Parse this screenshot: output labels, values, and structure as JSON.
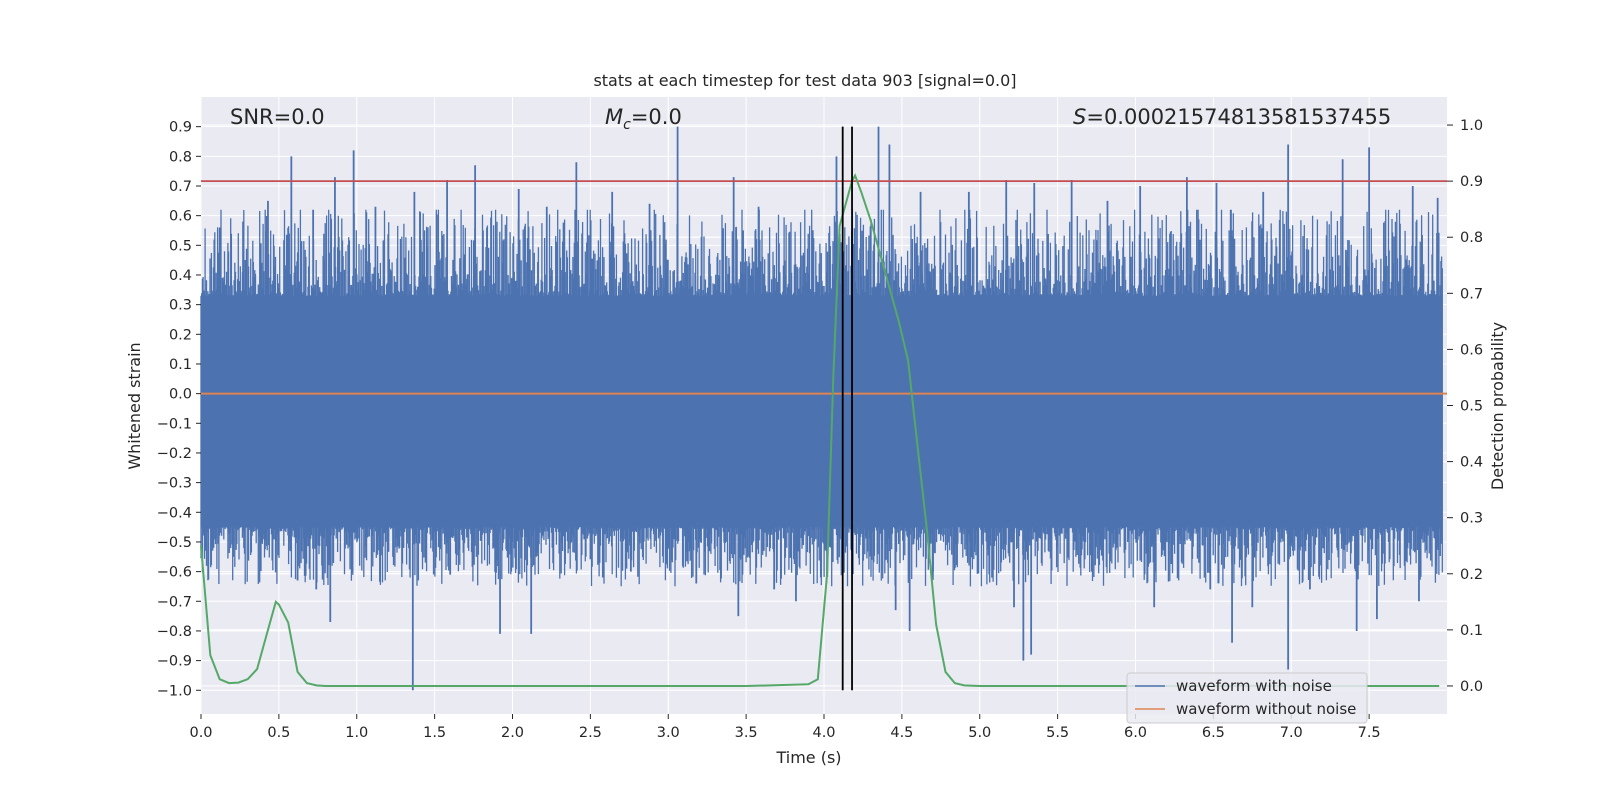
{
  "chart_data": {
    "type": "line",
    "title": "stats at each timestep for test data 903 [signal=0.0]",
    "xlabel": "Time (s)",
    "ylabel": "Whitened strain",
    "y2label": "Detection probability",
    "xlim": [
      0.0,
      8.0
    ],
    "ylim": [
      -1.08,
      1.0
    ],
    "y2lim": [
      -0.05,
      1.05
    ],
    "xticks": [
      0.0,
      0.5,
      1.0,
      1.5,
      2.0,
      2.5,
      3.0,
      3.5,
      4.0,
      4.5,
      5.0,
      5.5,
      6.0,
      6.5,
      7.0,
      7.5
    ],
    "yticks": [
      -1.0,
      -0.9,
      -0.8,
      -0.7,
      -0.6,
      -0.5,
      -0.4,
      -0.3,
      -0.2,
      -0.1,
      0.0,
      0.1,
      0.2,
      0.3,
      0.4,
      0.5,
      0.6,
      0.7,
      0.8,
      0.9
    ],
    "y2ticks": [
      0.0,
      0.1,
      0.2,
      0.3,
      0.4,
      0.5,
      0.6,
      0.7,
      0.8,
      0.9,
      1.0
    ],
    "grid": true,
    "legend_position": "bottom-right",
    "annotations": {
      "snr_prefix": "SNR",
      "snr_value": "=0.0",
      "mc_symbol": "M",
      "mc_subscript": "c",
      "mc_value": "=0.0",
      "s_symbol": "S",
      "s_value": "=0.00021574813581537455"
    },
    "threshold_line": {
      "y2": 0.9,
      "color": "#c44e52"
    },
    "vertical_lines": [
      4.12,
      4.18
    ],
    "series": [
      {
        "name": "waveform with noise",
        "color": "#4c72b0",
        "noise_envelope": {
          "core_max": 0.33,
          "core_min": -0.45,
          "spike_max": 0.9,
          "spike_min": -1.0
        },
        "spikes": [
          [
            0.12,
            0.56
          ],
          [
            0.27,
            0.58
          ],
          [
            0.43,
            0.65
          ],
          [
            0.58,
            0.8
          ],
          [
            0.72,
            0.62
          ],
          [
            0.86,
            0.73
          ],
          [
            0.98,
            0.82
          ],
          [
            1.12,
            0.63
          ],
          [
            1.37,
            0.68
          ],
          [
            1.58,
            0.72
          ],
          [
            1.76,
            0.77
          ],
          [
            2.04,
            0.69
          ],
          [
            2.22,
            0.63
          ],
          [
            2.41,
            0.78
          ],
          [
            2.64,
            0.68
          ],
          [
            2.88,
            0.64
          ],
          [
            3.06,
            0.9
          ],
          [
            3.42,
            0.73
          ],
          [
            3.58,
            0.63
          ],
          [
            4.08,
            0.8
          ],
          [
            4.35,
            0.9
          ],
          [
            4.42,
            0.84
          ],
          [
            4.62,
            0.68
          ],
          [
            4.93,
            0.68
          ],
          [
            5.17,
            0.72
          ],
          [
            5.35,
            0.71
          ],
          [
            5.59,
            0.72
          ],
          [
            5.82,
            0.65
          ],
          [
            6.03,
            0.7
          ],
          [
            6.33,
            0.73
          ],
          [
            6.52,
            0.71
          ],
          [
            6.82,
            0.68
          ],
          [
            6.98,
            0.84
          ],
          [
            7.33,
            0.79
          ],
          [
            7.5,
            0.83
          ],
          [
            7.78,
            0.7
          ],
          [
            7.94,
            0.66
          ],
          [
            0.08,
            -0.52
          ],
          [
            0.62,
            -0.63
          ],
          [
            0.74,
            -0.66
          ],
          [
            0.83,
            -0.77
          ],
          [
            1.3,
            -0.52
          ],
          [
            1.36,
            -1.0
          ],
          [
            1.6,
            -0.61
          ],
          [
            1.92,
            -0.81
          ],
          [
            2.12,
            -0.81
          ],
          [
            2.58,
            -0.62
          ],
          [
            2.76,
            -0.6
          ],
          [
            3.18,
            -0.64
          ],
          [
            3.45,
            -0.75
          ],
          [
            3.68,
            -0.66
          ],
          [
            3.82,
            -0.7
          ],
          [
            3.98,
            -0.62
          ],
          [
            4.46,
            -0.73
          ],
          [
            4.55,
            -0.8
          ],
          [
            4.7,
            -0.6
          ],
          [
            5.22,
            -0.72
          ],
          [
            5.28,
            -0.9
          ],
          [
            5.33,
            -0.88
          ],
          [
            5.72,
            -0.6
          ],
          [
            6.12,
            -0.72
          ],
          [
            6.48,
            -0.66
          ],
          [
            6.62,
            -0.84
          ],
          [
            6.75,
            -0.72
          ],
          [
            6.98,
            -0.93
          ],
          [
            7.12,
            -0.66
          ],
          [
            7.42,
            -0.8
          ],
          [
            7.55,
            -0.76
          ],
          [
            7.82,
            -0.7
          ]
        ]
      },
      {
        "name": "waveform without noise",
        "color": "#dd8452",
        "x": [
          0.0,
          8.0
        ],
        "y": [
          0.0,
          0.0
        ]
      },
      {
        "name": "Detection probability",
        "axis": "right",
        "color": "#55a868",
        "x": [
          0.0,
          0.06,
          0.12,
          0.18,
          0.24,
          0.3,
          0.36,
          0.42,
          0.48,
          0.5,
          0.56,
          0.62,
          0.68,
          0.74,
          0.8,
          1.0,
          2.0,
          3.0,
          3.5,
          3.9,
          3.96,
          4.02,
          4.06,
          4.1,
          4.14,
          4.18,
          4.2,
          4.24,
          4.3,
          4.36,
          4.42,
          4.48,
          4.54,
          4.6,
          4.66,
          4.72,
          4.78,
          4.84,
          4.9,
          5.0,
          6.0,
          7.0,
          7.95
        ],
        "y": [
          0.25,
          0.055,
          0.012,
          0.005,
          0.006,
          0.012,
          0.03,
          0.09,
          0.15,
          0.145,
          0.113,
          0.025,
          0.005,
          0.001,
          0.0,
          0.0,
          0.0,
          0.0,
          0.0,
          0.003,
          0.012,
          0.2,
          0.55,
          0.82,
          0.86,
          0.9,
          0.91,
          0.88,
          0.83,
          0.77,
          0.71,
          0.65,
          0.58,
          0.43,
          0.28,
          0.11,
          0.025,
          0.005,
          0.001,
          0.0,
          0.0,
          0.0,
          0.0
        ]
      }
    ]
  }
}
